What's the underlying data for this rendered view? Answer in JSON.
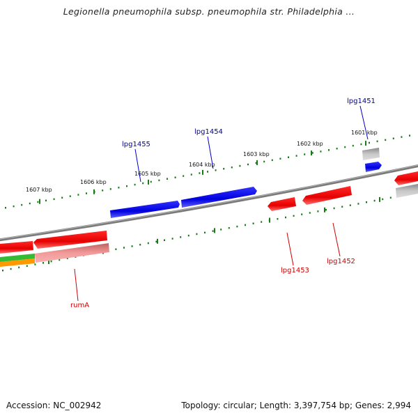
{
  "title": "Legionella pneumophila subsp. pneumophila str. Philadelphia ...",
  "footer": {
    "accession": "Accession: NC_002942",
    "summary": "Topology: circular; Length: 3,397,754 bp; Genes: 2,994"
  },
  "scale_ticks": [
    "1601 kbp",
    "1602 kbp",
    "1603 kbp",
    "1604 kbp",
    "1605 kbp",
    "1606 kbp",
    "1607 kbp"
  ],
  "gene_labels": {
    "forward": [
      "lpg1451",
      "lpg1454",
      "lpg1455"
    ],
    "reverse": [
      "lpg1452",
      "lpg1453",
      "rumA"
    ]
  },
  "colors": {
    "forward_gene": "#0000ee",
    "reverse_gene": "#ee0000",
    "reverse_gene_light": "#f09090",
    "other_gene": "#aaaaaa",
    "backbone": "#808080",
    "tick": "#1a7a1a",
    "forward_label": "#000099",
    "reverse_label": "#cc0000",
    "rna_green": "#33bb33",
    "rna_orange": "#ff9900"
  }
}
